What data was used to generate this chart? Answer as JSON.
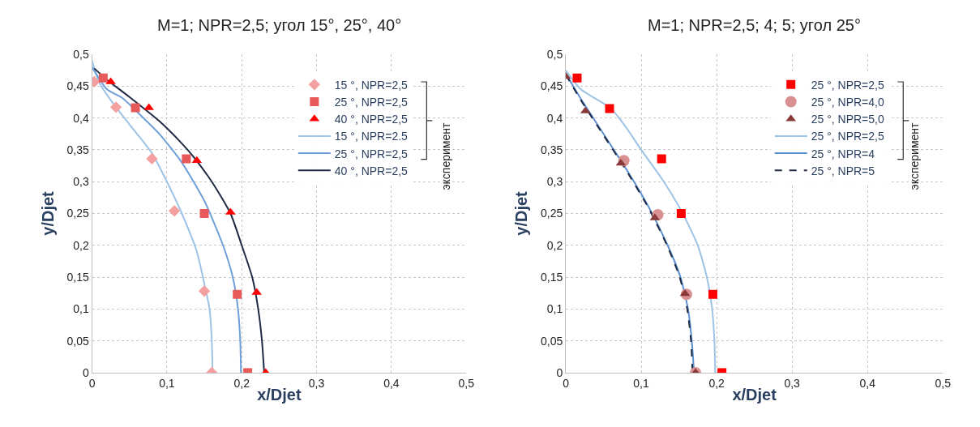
{
  "chart_data": [
    {
      "type": "scatter",
      "title": "M=1; NPR=2,5; угол 15°, 25°, 40°",
      "xlabel": "x/Djet",
      "ylabel": "y/Djet",
      "xlim": [
        0,
        0.5
      ],
      "ylim": [
        0,
        0.5
      ],
      "xticks": [
        0,
        {
          "value": 0.1,
          "label": "0,1"
        },
        {
          "value": 0.2,
          "label": "0,2"
        },
        {
          "value": 0.3,
          "label": "0,3"
        },
        {
          "value": 0.4,
          "label": "0,4"
        },
        {
          "value": 0.5,
          "label": "0,5"
        }
      ],
      "yticks": [
        0,
        {
          "value": 0.05,
          "label": "0,05"
        },
        {
          "value": 0.1,
          "label": "0,1"
        },
        {
          "value": 0.15,
          "label": "0,15"
        },
        {
          "value": 0.2,
          "label": "0,2"
        },
        {
          "value": 0.25,
          "label": "0,25"
        },
        {
          "value": 0.3,
          "label": "0,3"
        },
        {
          "value": 0.35,
          "label": "0,35"
        },
        {
          "value": 0.4,
          "label": "0,4"
        },
        {
          "value": 0.45,
          "label": "0,45"
        },
        {
          "value": 0.5,
          "label": "0,5"
        }
      ],
      "grid": true,
      "legend": "top right",
      "annotations": [
        "эксперимент"
      ],
      "series": [
        {
          "name": "15 °, NPR=2,5",
          "marker": "diamond",
          "color": "#f4a0a0",
          "x": [
            0.003,
            0.032,
            0.08,
            0.11,
            0.15,
            0.16
          ],
          "values": [
            0.457,
            0.417,
            0.336,
            0.254,
            0.128,
            0
          ]
        },
        {
          "name": "25 °, NPR=2,5",
          "marker": "square",
          "color": "#e85a5a",
          "x": [
            0.015,
            0.058,
            0.126,
            0.15,
            0.194,
            0.208
          ],
          "values": [
            0.463,
            0.416,
            0.336,
            0.25,
            0.123,
            0
          ]
        },
        {
          "name": "40 °, NPR=2,5",
          "marker": "triangle",
          "color": "#ff0000",
          "x": [
            0.025,
            0.076,
            0.14,
            0.185,
            0.22,
            0.232
          ],
          "values": [
            0.457,
            0.416,
            0.333,
            0.252,
            0.126,
            0
          ]
        },
        {
          "name": "15 °, NPR=2.5",
          "type": "line",
          "line_style": "solid",
          "color": "#9dc3e6",
          "x": [
            0,
            0.01,
            0.03,
            0.05,
            0.08,
            0.1,
            0.12,
            0.14,
            0.15,
            0.157,
            0.16,
            0.161
          ],
          "values": [
            0.49,
            0.455,
            0.42,
            0.39,
            0.345,
            0.3,
            0.25,
            0.19,
            0.14,
            0.1,
            0.05,
            0
          ]
        },
        {
          "name": "25 °, NPR=2,5",
          "type": "line",
          "line_style": "solid",
          "color": "#6f9fd8",
          "x": [
            0,
            0.02,
            0.04,
            0.06,
            0.09,
            0.12,
            0.15,
            0.175,
            0.188,
            0.195,
            0.198,
            0.199
          ],
          "values": [
            0.48,
            0.445,
            0.432,
            0.41,
            0.375,
            0.33,
            0.27,
            0.2,
            0.15,
            0.1,
            0.05,
            0
          ]
        },
        {
          "name": "40 °, NPR=2,5",
          "type": "line",
          "line_style": "solid",
          "color": "#1f2a44",
          "x": [
            0.003,
            0.02,
            0.05,
            0.09,
            0.12,
            0.135,
            0.16,
            0.185,
            0.2,
            0.214,
            0.222,
            0.227,
            0.23
          ],
          "values": [
            0.478,
            0.46,
            0.433,
            0.395,
            0.36,
            0.34,
            0.3,
            0.25,
            0.2,
            0.15,
            0.1,
            0.05,
            0
          ]
        }
      ]
    },
    {
      "type": "scatter",
      "title": "M=1; NPR=2,5; 4; 5; угол 25°",
      "xlabel": "x/Djet",
      "ylabel": "y/Djet",
      "xlim": [
        0,
        0.5
      ],
      "ylim": [
        0,
        0.5
      ],
      "xticks": [
        0,
        {
          "value": 0.1,
          "label": "0,1"
        },
        {
          "value": 0.2,
          "label": "0,2"
        },
        {
          "value": 0.3,
          "label": "0,3"
        },
        {
          "value": 0.4,
          "label": "0,4"
        },
        {
          "value": 0.5,
          "label": "0,5"
        }
      ],
      "yticks": [
        0,
        {
          "value": 0.05,
          "label": "0,05"
        },
        {
          "value": 0.1,
          "label": "0,1"
        },
        {
          "value": 0.15,
          "label": "0,15"
        },
        {
          "value": 0.2,
          "label": "0,2"
        },
        {
          "value": 0.25,
          "label": "0,25"
        },
        {
          "value": 0.3,
          "label": "0,3"
        },
        {
          "value": 0.35,
          "label": "0,35"
        },
        {
          "value": 0.4,
          "label": "0,4"
        },
        {
          "value": 0.45,
          "label": "0,45"
        },
        {
          "value": 0.5,
          "label": "0,5"
        }
      ],
      "grid": true,
      "legend": "top right",
      "annotations": [
        "эксперимент"
      ],
      "series": [
        {
          "name": "25 °, NPR=2,5",
          "marker": "square",
          "color": "#ff0000",
          "x": [
            0.015,
            0.058,
            0.127,
            0.153,
            0.195,
            0.207
          ],
          "values": [
            0.463,
            0.415,
            0.336,
            0.25,
            0.123,
            0
          ]
        },
        {
          "name": "25 °, NPR=4,0",
          "marker": "circle",
          "color": "#d99090",
          "x": [
            0.077,
            0.122,
            0.16,
            0.172
          ],
          "values": [
            0.333,
            0.248,
            0.123,
            0
          ]
        },
        {
          "name": "25 °, NPR=5,0",
          "marker": "triangle",
          "color": "#8b3a3a",
          "x": [
            0,
            0.026,
            0.073,
            0.118,
            0.158,
            0.172
          ],
          "values": [
            0.465,
            0.411,
            0.329,
            0.243,
            0.124,
            0
          ]
        },
        {
          "name": "25 °, NPR=2,5",
          "type": "line",
          "line_style": "solid",
          "color": "#9dc3e6",
          "x": [
            0,
            0.02,
            0.04,
            0.06,
            0.08,
            0.1,
            0.13,
            0.155,
            0.175,
            0.187,
            0.194,
            0.197,
            0.198
          ],
          "values": [
            0.475,
            0.445,
            0.43,
            0.415,
            0.385,
            0.35,
            0.3,
            0.25,
            0.2,
            0.15,
            0.1,
            0.05,
            0
          ]
        },
        {
          "name": "25 °, NPR=4",
          "type": "line",
          "line_style": "solid",
          "color": "#5b8fd0",
          "x": [
            0,
            0.02,
            0.05,
            0.08,
            0.11,
            0.135,
            0.152,
            0.162,
            0.167,
            0.17
          ],
          "values": [
            0.47,
            0.43,
            0.375,
            0.32,
            0.26,
            0.2,
            0.15,
            0.1,
            0.05,
            0
          ]
        },
        {
          "name": "25 °, NPR=5",
          "type": "line",
          "line_style": "dashed",
          "color": "#1f2a44",
          "x": [
            0,
            0.02,
            0.05,
            0.08,
            0.11,
            0.135,
            0.151,
            0.161,
            0.166,
            0.168
          ],
          "values": [
            0.468,
            0.428,
            0.373,
            0.318,
            0.258,
            0.198,
            0.15,
            0.1,
            0.05,
            0
          ]
        }
      ]
    }
  ]
}
